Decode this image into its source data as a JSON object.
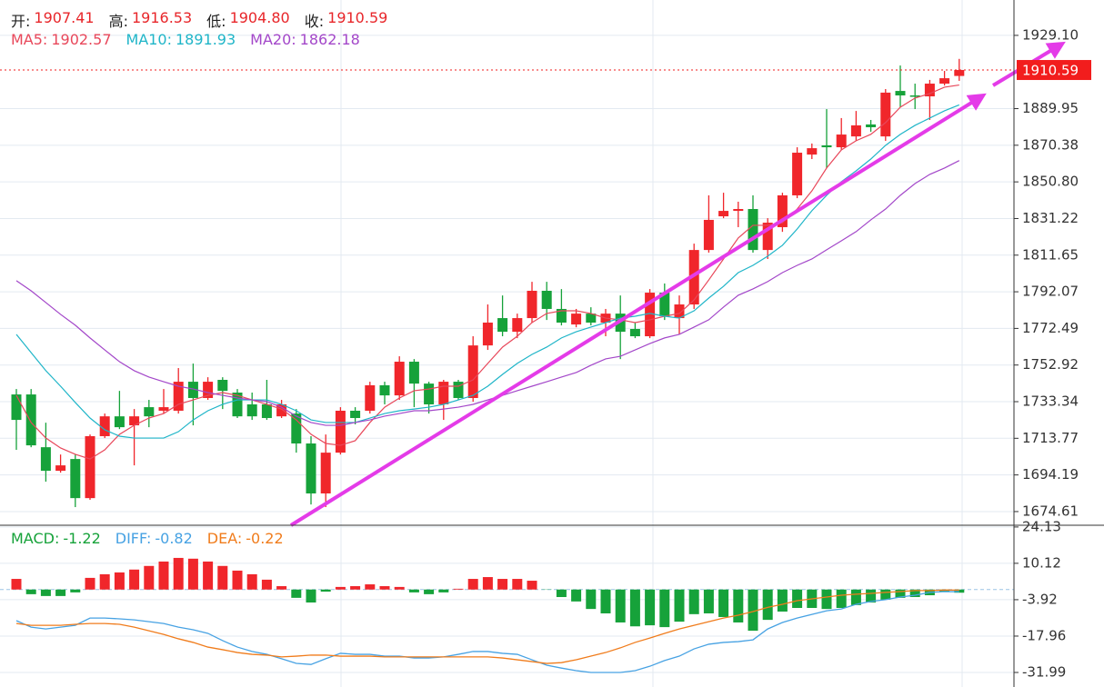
{
  "chart_data": [
    {
      "type": "candlestick",
      "ohlc_header": [
        {
          "label": "开:",
          "value": "1907.41"
        },
        {
          "label": "高:",
          "value": "1916.53"
        },
        {
          "label": "低:",
          "value": "1904.80"
        },
        {
          "label": "收:",
          "value": "1910.59"
        }
      ],
      "header_value_color": "#e8262a",
      "open": [
        1737.2,
        1737.2,
        1709.0,
        1696.4,
        1702.7,
        1681.8,
        1714.9,
        1725.5,
        1720.7,
        1730.4,
        1728.5,
        1728.5,
        1744.0,
        1735.3,
        1745.0,
        1738.2,
        1731.9,
        1731.9,
        1725.5,
        1727.0,
        1711.0,
        1684.3,
        1706.1,
        1728.5,
        1728.5,
        1742.1,
        1736.7,
        1754.7,
        1743.0,
        1731.9,
        1744.0,
        1735.3,
        1763.4,
        1778.0,
        1770.7,
        1778.0,
        1792.6,
        1782.9,
        1774.6,
        1780.4,
        1775.6,
        1780.4,
        1772.2,
        1768.3,
        1791.6,
        1778.0,
        1785.3,
        1814.4,
        1832.4,
        1835.3,
        1836.3,
        1814.4,
        1826.6,
        1843.6,
        1865.4,
        1870.3,
        1869.3,
        1875.1,
        1881.5,
        1875.1,
        1899.4,
        1897.0,
        1896.5,
        1903.3,
        1907.41
      ],
      "high": [
        1740.1,
        1740.1,
        1722.1,
        1705.1,
        1705.1,
        1715.8,
        1727.0,
        1739.1,
        1729.4,
        1734.3,
        1740.1,
        1751.3,
        1753.7,
        1746.4,
        1746.4,
        1740.1,
        1738.2,
        1745.0,
        1734.3,
        1729.4,
        1714.9,
        1715.8,
        1730.4,
        1730.4,
        1744.0,
        1744.0,
        1757.6,
        1756.1,
        1744.0,
        1745.0,
        1745.0,
        1768.3,
        1785.3,
        1790.1,
        1780.4,
        1797.4,
        1797.4,
        1793.5,
        1782.9,
        1783.8,
        1782.9,
        1790.1,
        1775.6,
        1793.5,
        1796.5,
        1790.1,
        1817.8,
        1843.6,
        1845.0,
        1840.2,
        1843.6,
        1831.4,
        1845.0,
        1869.3,
        1871.3,
        1889.7,
        1884.9,
        1888.7,
        1883.9,
        1900.4,
        1913.0,
        1903.3,
        1905.3,
        1910.1,
        1916.53
      ],
      "low": [
        1707.6,
        1709.0,
        1690.6,
        1695.4,
        1677.0,
        1680.9,
        1713.9,
        1718.7,
        1699.3,
        1719.7,
        1727.0,
        1727.0,
        1720.7,
        1734.3,
        1729.4,
        1724.6,
        1723.6,
        1723.6,
        1724.6,
        1706.1,
        1678.4,
        1677.0,
        1705.1,
        1721.2,
        1727.0,
        1731.9,
        1734.3,
        1730.4,
        1727.0,
        1723.6,
        1734.3,
        1733.3,
        1761.0,
        1768.3,
        1767.3,
        1775.6,
        1777.0,
        1774.1,
        1773.1,
        1774.1,
        1768.3,
        1756.1,
        1767.3,
        1767.3,
        1777.0,
        1769.3,
        1782.9,
        1813.0,
        1831.4,
        1826.6,
        1813.0,
        1809.6,
        1824.1,
        1842.1,
        1863.0,
        1858.1,
        1867.9,
        1872.7,
        1877.6,
        1872.7,
        1890.7,
        1889.7,
        1883.9,
        1902.3,
        1904.8
      ],
      "close": [
        1723.6,
        1710.0,
        1696.4,
        1699.3,
        1681.8,
        1714.9,
        1725.5,
        1719.7,
        1725.5,
        1725.5,
        1730.4,
        1744.0,
        1735.3,
        1744.0,
        1739.1,
        1725.5,
        1725.5,
        1724.6,
        1731.9,
        1711.0,
        1684.3,
        1706.1,
        1728.5,
        1724.6,
        1742.1,
        1736.7,
        1754.7,
        1743.0,
        1731.9,
        1744.0,
        1735.3,
        1763.4,
        1775.6,
        1770.7,
        1778.0,
        1792.6,
        1782.9,
        1775.6,
        1780.4,
        1775.6,
        1780.4,
        1770.7,
        1768.3,
        1791.6,
        1779.0,
        1785.3,
        1814.4,
        1830.5,
        1835.3,
        1836.3,
        1814.4,
        1829.0,
        1843.6,
        1866.4,
        1868.8,
        1869.3,
        1876.1,
        1881.0,
        1880.0,
        1898.5,
        1897.0,
        1896.5,
        1903.3,
        1906.2,
        1910.59
      ],
      "up_color": "#f0262b",
      "down_color": "#16a23a",
      "series": [
        {
          "name": "MA5:",
          "current_label": "1902.57",
          "color": "#e8475a",
          "values": [
            1736.7,
            1722.2,
            1713.9,
            1708.6,
            1705.2,
            1702.7,
            1707.6,
            1715.9,
            1720.7,
            1724.6,
            1727.0,
            1731.9,
            1734.3,
            1736.7,
            1738.2,
            1736.7,
            1734.3,
            1731.9,
            1729.4,
            1723.6,
            1715.9,
            1711.0,
            1710.0,
            1712.5,
            1722.2,
            1730.4,
            1735.3,
            1739.2,
            1740.1,
            1741.6,
            1741.6,
            1745.0,
            1753.8,
            1762.5,
            1768.3,
            1775.6,
            1780.5,
            1781.9,
            1781.9,
            1780.5,
            1778.0,
            1777.1,
            1775.6,
            1777.1,
            1779.0,
            1780.5,
            1787.7,
            1798.4,
            1809.6,
            1820.8,
            1827.6,
            1827.6,
            1829.0,
            1836.3,
            1846.0,
            1858.2,
            1867.9,
            1872.8,
            1876.2,
            1882.5,
            1890.7,
            1895.6,
            1898.0,
            1901.4,
            1902.57
          ]
        },
        {
          "name": "MA10:",
          "current_label": "1891.93",
          "color": "#1fb5c8",
          "values": [
            1769.3,
            1759.6,
            1749.9,
            1741.6,
            1732.9,
            1724.6,
            1718.3,
            1714.9,
            1713.9,
            1713.9,
            1713.9,
            1717.3,
            1723.6,
            1728.5,
            1731.9,
            1734.3,
            1734.3,
            1734.3,
            1731.9,
            1728.5,
            1723.6,
            1722.2,
            1722.2,
            1722.2,
            1724.6,
            1727.0,
            1728.5,
            1729.4,
            1730.4,
            1731.9,
            1734.3,
            1736.7,
            1741.6,
            1747.9,
            1753.8,
            1758.6,
            1762.5,
            1767.4,
            1770.7,
            1773.2,
            1775.6,
            1778.0,
            1779.0,
            1780.5,
            1779.0,
            1778.0,
            1781.9,
            1788.7,
            1795.0,
            1802.3,
            1806.2,
            1811.1,
            1816.9,
            1825.6,
            1835.4,
            1843.6,
            1850.9,
            1856.7,
            1863.0,
            1870.3,
            1876.2,
            1881.0,
            1884.9,
            1888.8,
            1891.93
          ]
        },
        {
          "name": "MA20:",
          "current_label": "1862.18",
          "color": "#a347c9",
          "values": [
            1798.0,
            1792.6,
            1786.3,
            1780.0,
            1774.2,
            1767.4,
            1761.0,
            1754.7,
            1749.9,
            1746.5,
            1744.0,
            1741.6,
            1740.1,
            1738.2,
            1736.7,
            1735.3,
            1734.3,
            1733.4,
            1730.4,
            1725.6,
            1722.2,
            1720.7,
            1720.7,
            1722.2,
            1723.6,
            1725.6,
            1727.0,
            1728.5,
            1728.5,
            1729.4,
            1730.4,
            1731.9,
            1734.3,
            1736.7,
            1739.2,
            1741.6,
            1744.0,
            1746.5,
            1748.9,
            1752.8,
            1756.2,
            1757.6,
            1761.0,
            1764.4,
            1767.4,
            1769.3,
            1773.2,
            1777.1,
            1783.9,
            1790.2,
            1793.6,
            1797.5,
            1802.3,
            1806.2,
            1809.6,
            1814.5,
            1819.3,
            1824.2,
            1830.5,
            1836.3,
            1843.6,
            1849.9,
            1854.8,
            1858.2,
            1862.18
          ]
        }
      ],
      "last_price": {
        "value": 1910.59,
        "label": "1910.59"
      },
      "last_price_color": "#f21d1d",
      "ylim": [
        1667.3,
        1948.0
      ],
      "yticks": [
        {
          "value": 1929.1,
          "label": "1929.10"
        },
        1889.95,
        1870.38,
        {
          "value": 1850.8,
          "label": "1850.80"
        },
        1831.22,
        1811.65,
        1792.07,
        1772.49,
        1752.92,
        1733.34,
        1713.77,
        1694.19,
        1674.61
      ],
      "grid": true
    },
    {
      "type": "macd",
      "histogram": {
        "name": "MACD:",
        "current_label": "-1.22",
        "pos_color": "#f0262b",
        "neg_color": "#16a23a",
        "values": [
          4.1,
          -1.8,
          -2.5,
          -2.5,
          -1.1,
          4.5,
          5.9,
          6.6,
          7.7,
          9.1,
          10.8,
          12.2,
          11.9,
          10.8,
          9.1,
          7.3,
          5.9,
          3.8,
          1.3,
          -3.2,
          -5.0,
          -0.8,
          1.0,
          1.3,
          2.0,
          1.3,
          1.0,
          -1.1,
          -1.8,
          -1.1,
          0.3,
          4.1,
          4.8,
          4.1,
          4.1,
          3.4,
          -0.1,
          -2.9,
          -4.6,
          -7.5,
          -9.2,
          -12.7,
          -14.2,
          -13.8,
          -14.5,
          -12.4,
          -9.5,
          -9.2,
          -10.6,
          -12.7,
          -15.9,
          -11.7,
          -8.5,
          -7.1,
          -7.1,
          -7.5,
          -7.1,
          -6.0,
          -5.0,
          -3.9,
          -3.2,
          -2.9,
          -2.2,
          -0.8,
          -1.22
        ]
      },
      "series": [
        {
          "name": "DIFF:",
          "current_label": "-0.82",
          "color": "#47a2e3",
          "values": [
            -12.0,
            -14.5,
            -15.2,
            -14.5,
            -13.8,
            -11.0,
            -11.0,
            -11.3,
            -11.7,
            -12.4,
            -13.1,
            -14.5,
            -15.5,
            -16.9,
            -19.7,
            -22.2,
            -23.9,
            -25.0,
            -26.7,
            -28.5,
            -28.9,
            -26.7,
            -24.6,
            -25.0,
            -25.0,
            -25.7,
            -25.7,
            -26.4,
            -26.4,
            -26.0,
            -25.0,
            -23.9,
            -23.9,
            -24.6,
            -25.0,
            -27.1,
            -29.2,
            -30.3,
            -31.3,
            -32.0,
            -32.0,
            -32.0,
            -31.3,
            -29.6,
            -27.4,
            -25.7,
            -22.9,
            -21.1,
            -20.4,
            -20.1,
            -19.4,
            -15.2,
            -12.7,
            -11.0,
            -9.6,
            -8.2,
            -7.5,
            -5.7,
            -4.6,
            -3.9,
            -2.9,
            -2.2,
            -1.1,
            -0.8,
            -0.82
          ]
        },
        {
          "name": "DEA:",
          "current_label": "-0.22",
          "color": "#f07c1c",
          "values": [
            -13.1,
            -13.8,
            -13.8,
            -13.8,
            -13.4,
            -13.1,
            -13.1,
            -13.4,
            -14.5,
            -15.9,
            -17.3,
            -19.0,
            -20.4,
            -22.2,
            -23.2,
            -24.3,
            -25.0,
            -25.3,
            -26.0,
            -25.7,
            -25.3,
            -25.3,
            -25.7,
            -25.7,
            -25.7,
            -26.0,
            -26.0,
            -26.0,
            -26.0,
            -26.0,
            -26.0,
            -26.0,
            -26.0,
            -26.4,
            -27.1,
            -27.8,
            -28.5,
            -28.2,
            -27.1,
            -25.7,
            -24.3,
            -22.5,
            -20.4,
            -18.7,
            -16.9,
            -15.2,
            -13.8,
            -12.4,
            -11.0,
            -9.9,
            -8.5,
            -6.9,
            -5.7,
            -4.3,
            -3.6,
            -2.9,
            -2.2,
            -1.8,
            -1.5,
            -1.1,
            -0.8,
            -0.4,
            -0.4,
            -0.2,
            -0.22
          ]
        }
      ],
      "ylim": [
        -37.6,
        24.8
      ],
      "yticks": [
        24.13,
        10.12,
        -3.92,
        -17.96,
        -31.99
      ],
      "grid": true
    }
  ]
}
